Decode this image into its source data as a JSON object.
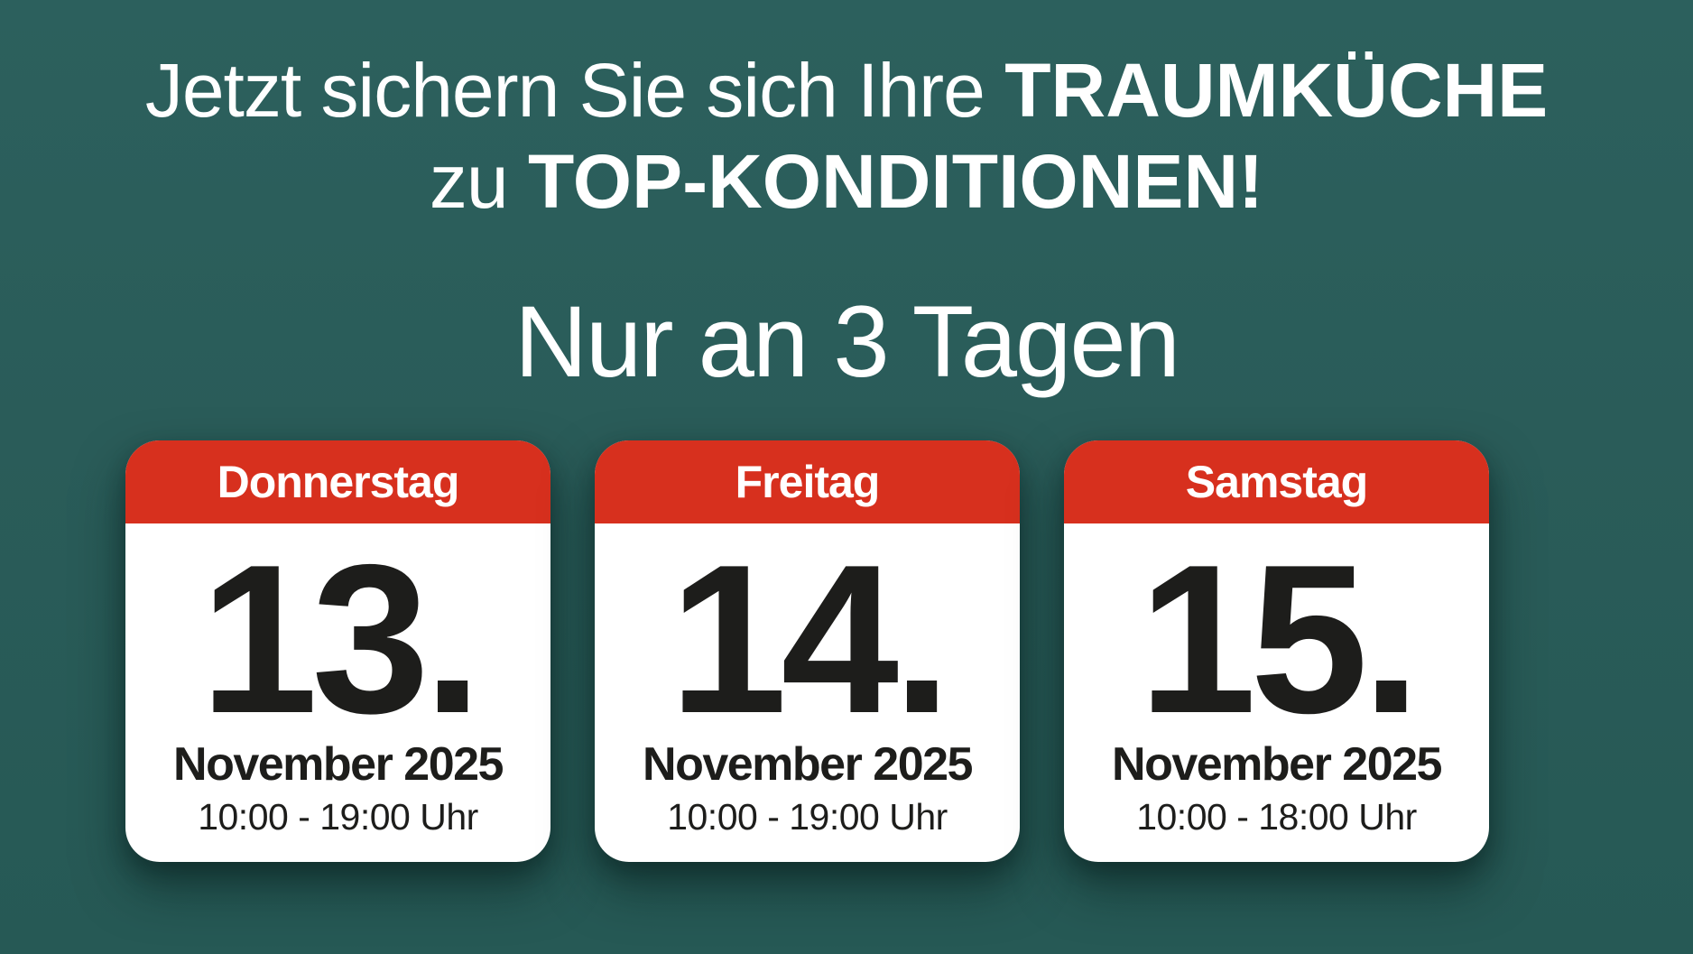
{
  "colors": {
    "background_teal": "#2A5C59",
    "card_header_red": "#D7301E",
    "card_white": "#FFFFFF",
    "text_dark": "#1D1D1B",
    "text_white": "#FFFFFF"
  },
  "headline": {
    "line1_regular": "Jetzt sichern Sie sich Ihre ",
    "line1_bold": "TRAUMKÜCHE",
    "line2_regular": "zu ",
    "line2_bold": "TOP-KONDITIONEN!"
  },
  "subheadline": "Nur an 3 Tagen",
  "cards": [
    {
      "day": "Donnerstag",
      "date": "13.",
      "month_year": "November 2025",
      "hours": "10:00 - 19:00 Uhr"
    },
    {
      "day": "Freitag",
      "date": "14.",
      "month_year": "November 2025",
      "hours": "10:00 - 19:00 Uhr"
    },
    {
      "day": "Samstag",
      "date": "15.",
      "month_year": "November 2025",
      "hours": "10:00 - 18:00 Uhr"
    }
  ]
}
